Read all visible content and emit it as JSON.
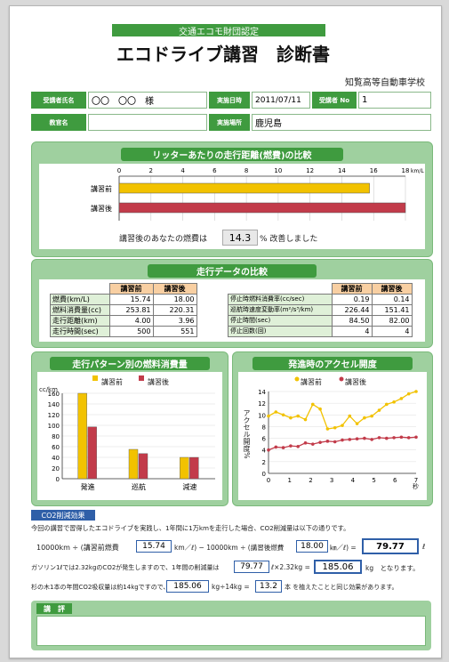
{
  "header": {
    "subtitle": "交通エコモ財団認定",
    "title": "エコドライブ講習　診断書",
    "school": "知覧高等自動車学校"
  },
  "info": {
    "trainee_label": "受講者氏名",
    "trainee_value": "〇〇　〇〇　様",
    "date_label": "実施日時",
    "date_value": "2011/07/11",
    "no_label": "受講者 No",
    "no_value": "1",
    "instructor_label": "教官名",
    "instructor_value": "",
    "place_label": "実施場所",
    "place_value": "鹿児島"
  },
  "fuel_chart": {
    "title": "リッターあたりの走行距離(燃費)の比較",
    "unit": "km/L",
    "improve_prefix": "講習後のあなたの燃費は",
    "improve_value": "14.3",
    "improve_suffix": "% 改善しました"
  },
  "drive_table": {
    "title": "走行データの比較",
    "h_before": "講習前",
    "h_after": "講習後",
    "left_rows": [
      {
        "label": "燃費(km/L)",
        "before": "15.74",
        "after": "18.00"
      },
      {
        "label": "燃料消費量(cc)",
        "before": "253.81",
        "after": "220.31"
      },
      {
        "label": "走行距離(km)",
        "before": "4.00",
        "after": "3.96"
      },
      {
        "label": "走行時間(sec)",
        "before": "500",
        "after": "551"
      }
    ],
    "right_rows": [
      {
        "label": "停止時燃料消費率(cc/sec)",
        "before": "0.19",
        "after": "0.14"
      },
      {
        "label": "巡航時速度変動率(m²/s³/km)",
        "before": "226.44",
        "after": "151.41"
      },
      {
        "label": "停止時間(sec)",
        "before": "84.50",
        "after": "82.00"
      },
      {
        "label": "停止回数(回)",
        "before": "4",
        "after": "4"
      }
    ]
  },
  "pattern_chart": {
    "title": "走行パターン別の燃料消費量",
    "legend_before": "講習前",
    "legend_after": "講習後",
    "yunit": "cc/km"
  },
  "accel_chart": {
    "title": "発進時のアクセル開度",
    "legend_before": "講習前",
    "legend_after": "講習後",
    "ylabel": "アクセル開度%",
    "xunit": "秒"
  },
  "co2": {
    "tag": "CO2削減効果",
    "line1": "今回の講習で習得したエコドライブを実践し、1年間に1万kmを走行した場合、CO2削減量は以下の通りです。",
    "l2a": "10000km ÷ (講習前燃費",
    "l2b": "km／ℓ) − 10000km ÷ (講習後燃費",
    "l2c": "㎞／ℓ) =",
    "l2d": "ℓ",
    "before_fuel": "15.74",
    "after_fuel": "18.00",
    "saved_l": "79.77",
    "l3a": "ガソリン1ℓでは2.32kgのCO2が発生しますので、1年間の削減量は",
    "l3b": "ℓ×2.32kg =",
    "l3c": "kg　となります。",
    "saved_l2": "79.77",
    "co2_kg": "185.06",
    "l4a": "杉の木1本の年間CO2吸収量は約14kgですので、",
    "l4b": "kg÷14kg =",
    "l4c": "本 を植えたことと同じ効果があります。",
    "co2_kg2": "185.06",
    "trees": "13.2"
  },
  "comment": {
    "title": "講　評",
    "text": ""
  },
  "chart_data": [
    {
      "type": "bar",
      "title": "リッターあたりの走行距離(燃費)の比較",
      "categories": [
        "講習前",
        "講習後"
      ],
      "values": [
        15.74,
        18.0
      ],
      "xlim": [
        0,
        18
      ],
      "ticks": [
        0,
        2,
        4,
        6,
        8,
        10,
        12,
        14,
        16,
        18
      ],
      "unit": "km/L",
      "colors": [
        "#f2c200",
        "#c23b4a"
      ]
    },
    {
      "type": "bar",
      "title": "走行パターン別の燃料消費量",
      "categories": [
        "発進",
        "巡航",
        "減速"
      ],
      "series": [
        {
          "name": "講習前",
          "values": [
            160,
            55,
            40
          ],
          "color": "#f2c200"
        },
        {
          "name": "講習後",
          "values": [
            97,
            47,
            40
          ],
          "color": "#c23b4a"
        }
      ],
      "ylim": [
        0,
        160
      ],
      "ticks": [
        0,
        20,
        40,
        60,
        80,
        100,
        120,
        140,
        160
      ],
      "ylabel": "cc/km"
    },
    {
      "type": "line",
      "title": "発進時のアクセル開度",
      "x": [
        0,
        0.35,
        0.7,
        1.05,
        1.4,
        1.75,
        2.1,
        2.45,
        2.8,
        3.15,
        3.5,
        3.85,
        4.2,
        4.55,
        4.9,
        5.25,
        5.6,
        5.95,
        6.3,
        6.65,
        7.0
      ],
      "series": [
        {
          "name": "講習前",
          "values": [
            9.8,
            10.5,
            10,
            9.5,
            9.8,
            9.2,
            11.8,
            11,
            7.6,
            7.8,
            8.2,
            9.8,
            8.5,
            9.5,
            9.8,
            10.8,
            11.8,
            12.2,
            12.8,
            13.6,
            14
          ],
          "color": "#f2c200"
        },
        {
          "name": "講習後",
          "values": [
            4,
            4.5,
            4.4,
            4.7,
            4.6,
            5.2,
            5,
            5.3,
            5.5,
            5.4,
            5.7,
            5.8,
            5.9,
            6,
            5.8,
            6.1,
            6,
            6.1,
            6.2,
            6.1,
            6.2
          ],
          "color": "#c23b4a"
        }
      ],
      "xlim": [
        0,
        7
      ],
      "ylim": [
        0,
        14
      ],
      "yticks": [
        0,
        2,
        4,
        6,
        8,
        10,
        12,
        14
      ],
      "xticks": [
        0,
        1,
        2,
        3,
        4,
        5,
        6,
        7
      ],
      "ylabel": "アクセル開度%",
      "xlabel": "秒"
    }
  ]
}
